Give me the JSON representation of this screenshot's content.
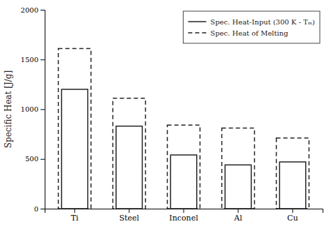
{
  "chart_data": {
    "type": "bar",
    "categories": [
      "Ti",
      "Steel",
      "Inconel",
      "Al",
      "Cu"
    ],
    "series": [
      {
        "name": "Spec. Heat-Input (300 K - Tₘ)",
        "color": "white",
        "line_style": "solid",
        "values": [
          1200,
          830,
          540,
          440,
          470
        ]
      },
      {
        "name": "Spec. Heat of Melting",
        "color": "white",
        "line_style": "dashed",
        "values": [
          1610,
          1110,
          840,
          810,
          710
        ]
      }
    ],
    "ylabel": "Specific Heat [J/g]",
    "ylim": [
      0,
      2000
    ],
    "yticks": [
      0,
      500,
      1000,
      1500,
      2000
    ],
    "grid": false,
    "legend": "upper right"
  }
}
